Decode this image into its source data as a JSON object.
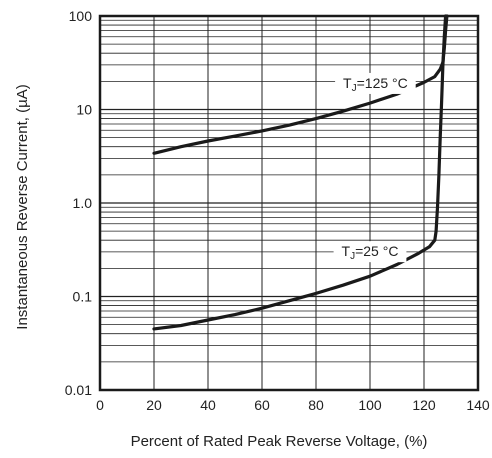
{
  "chart_data": {
    "type": "line",
    "title": "",
    "xlabel": "Percent of Rated Peak Reverse Voltage, (%)",
    "ylabel": "Instantaneous Reverse Current, (µA)",
    "xlim": [
      0,
      140
    ],
    "ylim": [
      0.01,
      100
    ],
    "yscale": "log",
    "grid": true,
    "x_ticks": [
      0,
      20,
      40,
      60,
      80,
      100,
      120,
      140
    ],
    "x_tick_labels": [
      "0",
      "20",
      "40",
      "60",
      "80",
      "100",
      "120",
      "140"
    ],
    "y_ticks": [
      0.01,
      0.1,
      1,
      10,
      100
    ],
    "y_tick_labels": [
      "0.01",
      "0.1",
      "1.0",
      "10",
      "100"
    ],
    "series": [
      {
        "label_prefix": "T",
        "label_sub": "J",
        "label_rest": "=125 °C",
        "label_at": [
          102,
          17
        ],
        "x": [
          20,
          30,
          40,
          50,
          60,
          70,
          80,
          90,
          100,
          110,
          120,
          124,
          126,
          127,
          127.5,
          128,
          128.5
        ],
        "y": [
          3.4,
          4.0,
          4.6,
          5.2,
          5.9,
          6.8,
          8.0,
          9.6,
          11.7,
          14.6,
          19.5,
          22.5,
          27,
          32,
          45,
          70,
          100
        ]
      },
      {
        "label_prefix": "T",
        "label_sub": "J",
        "label_rest": "=25 °C",
        "label_at": [
          100,
          0.27
        ],
        "x": [
          20,
          30,
          40,
          50,
          60,
          70,
          80,
          90,
          100,
          110,
          118,
          122,
          124,
          124.5,
          125,
          125.5,
          126,
          126.5,
          127,
          127.5,
          128
        ],
        "y": [
          0.045,
          0.049,
          0.056,
          0.064,
          0.075,
          0.09,
          0.108,
          0.132,
          0.165,
          0.22,
          0.29,
          0.34,
          0.4,
          0.5,
          0.9,
          2.0,
          5.0,
          12,
          30,
          60,
          100
        ]
      }
    ]
  }
}
